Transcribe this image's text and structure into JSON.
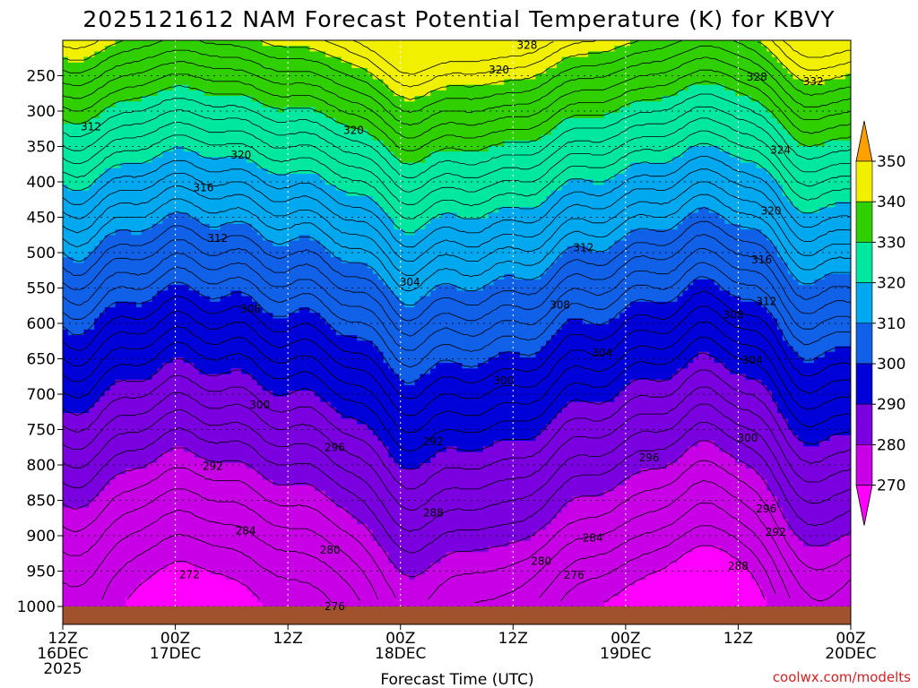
{
  "chart_data": {
    "type": "heatmap",
    "title": "2025121612 NAM Forecast Potential Temperature (K) for KBVY",
    "xlabel": "Forecast Time (UTC)",
    "ylabel": "",
    "y_ticks": [
      "250",
      "300",
      "350",
      "400",
      "450",
      "500",
      "550",
      "600",
      "650",
      "700",
      "750",
      "800",
      "850",
      "900",
      "950",
      "1000"
    ],
    "x_ticks": [
      {
        "hours": 0,
        "line1": "12Z",
        "line2": "16DEC",
        "line3": "2025"
      },
      {
        "hours": 12,
        "line1": "00Z",
        "line2": "17DEC",
        "line3": ""
      },
      {
        "hours": 24,
        "line1": "12Z",
        "line2": "",
        "line3": ""
      },
      {
        "hours": 36,
        "line1": "00Z",
        "line2": "18DEC",
        "line3": ""
      },
      {
        "hours": 48,
        "line1": "12Z",
        "line2": "",
        "line3": ""
      },
      {
        "hours": 60,
        "line1": "00Z",
        "line2": "19DEC",
        "line3": ""
      },
      {
        "hours": 72,
        "line1": "12Z",
        "line2": "",
        "line3": ""
      },
      {
        "hours": 84,
        "line1": "00Z",
        "line2": "20DEC",
        "line3": ""
      }
    ],
    "y_range_hpa": [
      200,
      1030
    ],
    "x_range_hours": [
      0,
      84
    ],
    "colorbar": {
      "levels": [
        "270",
        "280",
        "290",
        "300",
        "310",
        "320",
        "330",
        "340",
        "350"
      ],
      "colors": [
        "#ff00ff",
        "#c800e6",
        "#7a00e0",
        "#0000d8",
        "#1060e8",
        "#00a8f0",
        "#00e8a0",
        "#30d000",
        "#f0f000",
        "#ffa000"
      ]
    },
    "contour_labels": [
      {
        "text": "328",
        "hours": 49.5,
        "hpa": 207
      },
      {
        "text": "320",
        "hours": 46.5,
        "hpa": 242
      },
      {
        "text": "328",
        "hours": 74.0,
        "hpa": 252
      },
      {
        "text": "332",
        "hours": 80.0,
        "hpa": 258
      },
      {
        "text": "312",
        "hours": 3.0,
        "hpa": 322
      },
      {
        "text": "320",
        "hours": 31.0,
        "hpa": 327
      },
      {
        "text": "324",
        "hours": 76.5,
        "hpa": 355
      },
      {
        "text": "320",
        "hours": 19.0,
        "hpa": 362
      },
      {
        "text": "316",
        "hours": 15.0,
        "hpa": 408
      },
      {
        "text": "320",
        "hours": 75.5,
        "hpa": 441
      },
      {
        "text": "312",
        "hours": 16.5,
        "hpa": 480
      },
      {
        "text": "312",
        "hours": 55.5,
        "hpa": 493
      },
      {
        "text": "316",
        "hours": 74.5,
        "hpa": 510
      },
      {
        "text": "304",
        "hours": 37.0,
        "hpa": 542
      },
      {
        "text": "312",
        "hours": 75.0,
        "hpa": 569
      },
      {
        "text": "308",
        "hours": 20.0,
        "hpa": 580
      },
      {
        "text": "308",
        "hours": 53.0,
        "hpa": 574
      },
      {
        "text": "308",
        "hours": 71.5,
        "hpa": 588
      },
      {
        "text": "304",
        "hours": 57.5,
        "hpa": 642
      },
      {
        "text": "304",
        "hours": 73.5,
        "hpa": 652
      },
      {
        "text": "300",
        "hours": 47.0,
        "hpa": 681
      },
      {
        "text": "300",
        "hours": 21.0,
        "hpa": 715
      },
      {
        "text": "300",
        "hours": 73.0,
        "hpa": 762
      },
      {
        "text": "292",
        "hours": 39.5,
        "hpa": 767
      },
      {
        "text": "296",
        "hours": 29.0,
        "hpa": 775
      },
      {
        "text": "296",
        "hours": 62.5,
        "hpa": 790
      },
      {
        "text": "292",
        "hours": 16.0,
        "hpa": 802
      },
      {
        "text": "296",
        "hours": 75.0,
        "hpa": 862
      },
      {
        "text": "288",
        "hours": 39.5,
        "hpa": 868
      },
      {
        "text": "284",
        "hours": 19.5,
        "hpa": 893
      },
      {
        "text": "292",
        "hours": 76.0,
        "hpa": 895
      },
      {
        "text": "284",
        "hours": 56.5,
        "hpa": 903
      },
      {
        "text": "280",
        "hours": 28.5,
        "hpa": 920
      },
      {
        "text": "280",
        "hours": 51.0,
        "hpa": 936
      },
      {
        "text": "288",
        "hours": 72.0,
        "hpa": 943
      },
      {
        "text": "272",
        "hours": 13.5,
        "hpa": 955
      },
      {
        "text": "276",
        "hours": 54.5,
        "hpa": 956
      },
      {
        "text": "276",
        "hours": 29.0,
        "hpa": 1000
      }
    ],
    "credit": "coolwx.com/modelts"
  }
}
